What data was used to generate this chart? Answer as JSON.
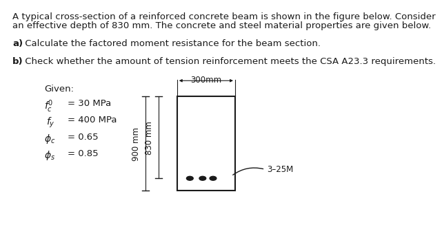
{
  "bg_color": "#ffffff",
  "text_color": "#1a1a1a",
  "beam_color": "#1a1a1a",
  "title_line1": "A typical cross-section of a reinforced concrete beam is shown in the figure below. Consider",
  "title_line2": "an effective depth of 830 mm. The concrete and steel material properties are given below.",
  "part_a_bold": "a)",
  "part_a_rest": " Calculate the factored moment resistance for the beam section.",
  "part_b_bold": "b)",
  "part_b_rest": " Check whether the amount of tension reinforcement meets the CSA A23.3 requirements.",
  "given_label": "Given:",
  "dim_900": "900 mm",
  "dim_830": "830 mm",
  "dim_300": "300mm",
  "label_rebar": "3–25M",
  "fc_label": "f",
  "fc_sub": "c",
  "fy_label": "f",
  "fy_sub": "y",
  "phi_c_label": "ϕ",
  "phi_c_sub": "c",
  "phi_s_label": "ϕ",
  "phi_s_sub": "s",
  "fc_val": "= 30 MPa",
  "fy_val": "= 400 MPa",
  "phi_c_val": "= 0.65",
  "phi_s_val": "= 0.85",
  "fontsize_main": 9.5,
  "fontsize_diagram": 8.5,
  "bx": 0.455,
  "by": 0.18,
  "bw": 0.155,
  "bh": 0.42
}
